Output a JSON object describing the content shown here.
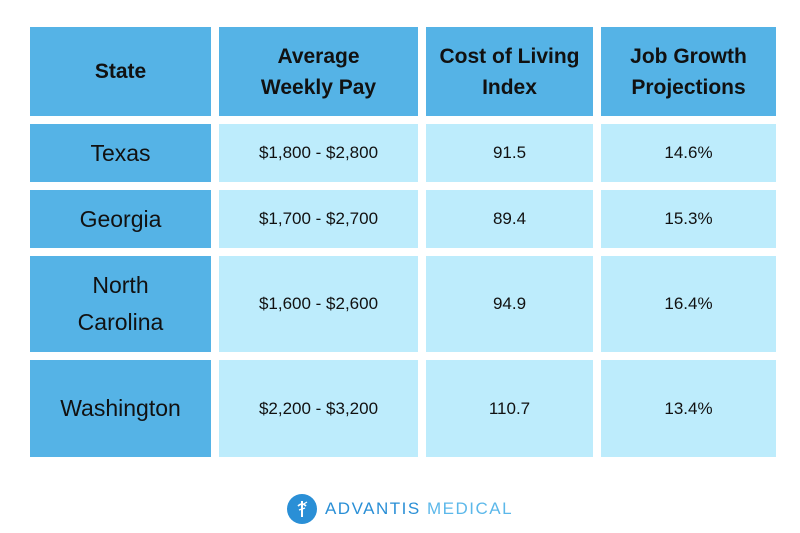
{
  "table": {
    "headers": [
      "State",
      "Average Weekly Pay",
      "Cost of Living Index",
      "Job Growth Projections"
    ],
    "rows": [
      {
        "state": "Texas",
        "pay": "$1,800 - $2,800",
        "col": "91.5",
        "growth": "14.6%"
      },
      {
        "state": "Georgia",
        "pay": "$1,700 - $2,700",
        "col": "89.4",
        "growth": "15.3%"
      },
      {
        "state": "North Carolina",
        "pay": "$1,600 - $2,600",
        "col": "94.9",
        "growth": "16.4%"
      },
      {
        "state": "Washington",
        "pay": "$2,200 - $3,200",
        "col": "110.7",
        "growth": "13.4%"
      }
    ]
  },
  "footer": {
    "logo_icon": "advantis-logo-icon",
    "brand_part1": "ADVANTIS",
    "brand_part2": "MEDICAL",
    "colors": {
      "brand_dark": "#2a8fd6",
      "brand_light": "#5cb8ea"
    }
  },
  "colors": {
    "header_bg": "#55b3e6",
    "cell_bg": "#bdecfc"
  }
}
